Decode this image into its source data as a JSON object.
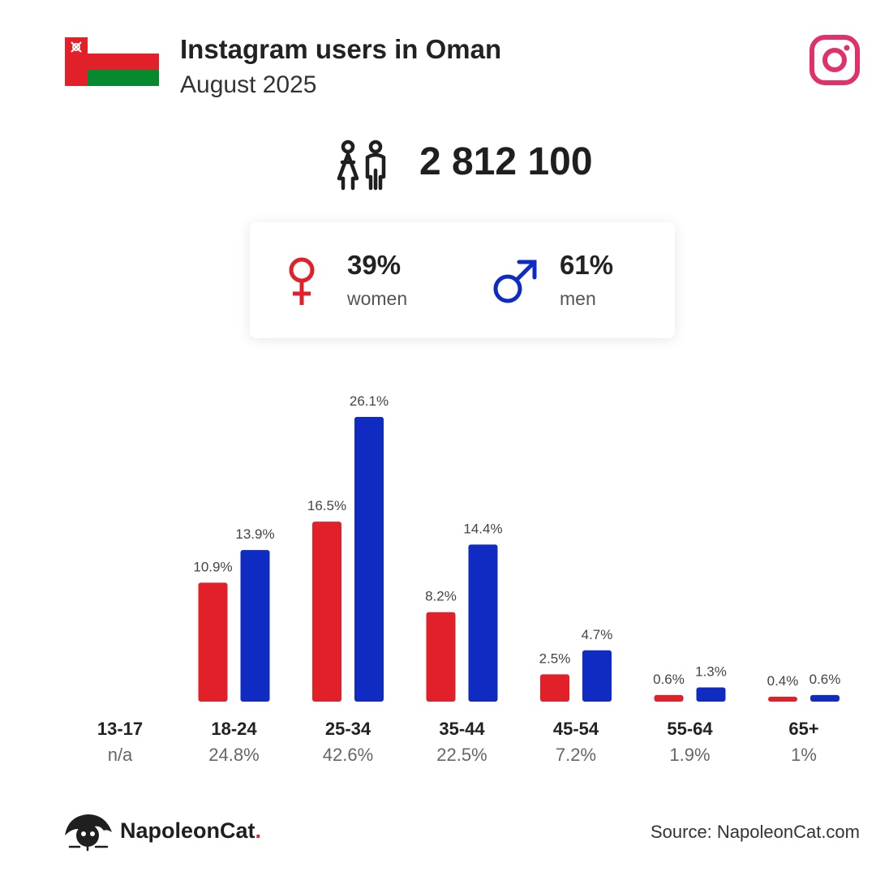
{
  "header": {
    "title": "Instagram users in Oman",
    "subtitle": "August 2025",
    "flag_icon": "oman-flag-icon",
    "platform_icon": "instagram-icon"
  },
  "summary": {
    "total": "2 812 100",
    "icon": "people-icon"
  },
  "gender": {
    "women": {
      "pct": "39%",
      "label": "women",
      "icon": "female-symbol-icon",
      "color": "#e2202a"
    },
    "men": {
      "pct": "61%",
      "label": "men",
      "icon": "male-symbol-icon",
      "color": "#0f2bc2"
    }
  },
  "chart_data": {
    "type": "bar",
    "categories": [
      "13-17",
      "18-24",
      "25-34",
      "35-44",
      "45-54",
      "55-64",
      "65+"
    ],
    "category_totals": [
      "n/a",
      "24.8%",
      "42.6%",
      "22.5%",
      "7.2%",
      "1.9%",
      "1%"
    ],
    "series": [
      {
        "key": "women",
        "color": "#e2202a",
        "values": [
          null,
          10.9,
          16.5,
          8.2,
          2.5,
          0.6,
          0.4
        ],
        "labels": [
          "",
          "10.9%",
          "16.5%",
          "8.2%",
          "2.5%",
          "0.6%",
          "0.4%"
        ]
      },
      {
        "key": "men",
        "color": "#0f2bc2",
        "values": [
          null,
          13.9,
          26.1,
          14.4,
          4.7,
          1.3,
          0.6
        ],
        "labels": [
          "",
          "13.9%",
          "26.1%",
          "14.4%",
          "4.7%",
          "1.3%",
          "0.6%"
        ]
      }
    ],
    "ylim": [
      0,
      26.1
    ],
    "grid": false,
    "title": "",
    "xlabel": "",
    "ylabel": ""
  },
  "footer": {
    "brand": "NapoleonCat",
    "brand_dot": ".",
    "brand_icon": "napoleoncat-logo-icon",
    "source": "Source: NapoleonCat.com"
  }
}
